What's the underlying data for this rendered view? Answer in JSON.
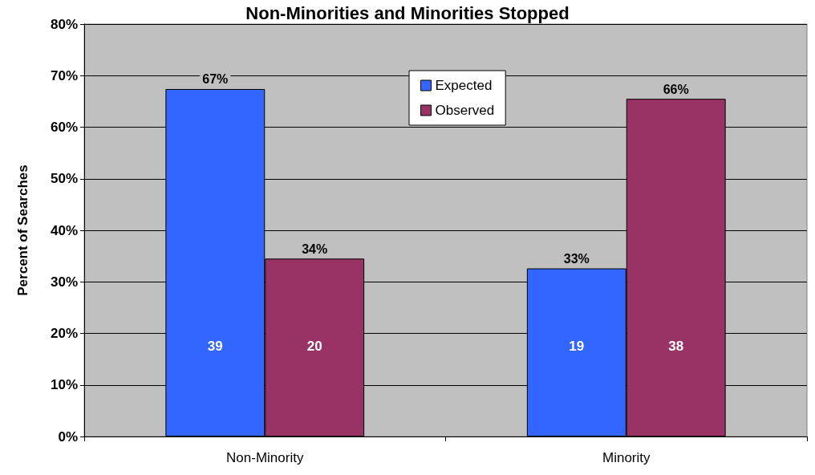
{
  "chart_data": {
    "type": "bar",
    "title": "Non-Minorities and Minorities Stopped",
    "ylabel": "Percent of Searches",
    "categories": [
      "Non-Minority",
      "Minority"
    ],
    "series": [
      {
        "name": "Expected",
        "color": "#3366ff",
        "values": [
          67.4,
          32.6
        ],
        "value_labels": [
          "67%",
          "33%"
        ]
      },
      {
        "name": "Observed",
        "color": "#993366",
        "values": [
          34.5,
          65.5
        ],
        "value_labels": [
          "34%",
          "66%"
        ]
      }
    ],
    "ylim": [
      0,
      80
    ],
    "yticks": [
      {
        "value": 0,
        "label": "0%"
      },
      {
        "value": 10,
        "label": "10%"
      },
      {
        "value": 20,
        "label": "20%"
      },
      {
        "value": 30,
        "label": "30%"
      },
      {
        "value": 40,
        "label": "40%"
      },
      {
        "value": 50,
        "label": "50%"
      },
      {
        "value": 60,
        "label": "60%"
      },
      {
        "value": 70,
        "label": "70%"
      },
      {
        "value": 80,
        "label": "80%"
      }
    ],
    "annotations": [
      "39",
      "20",
      "19",
      "38"
    ],
    "grid": "y",
    "legend": "top"
  }
}
